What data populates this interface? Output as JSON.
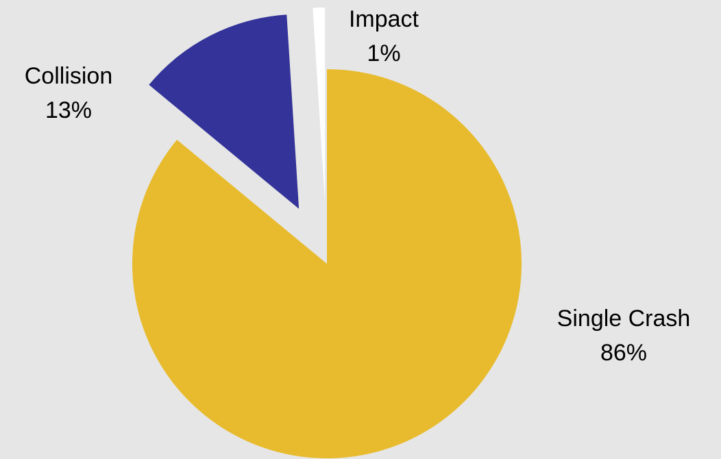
{
  "chart_data": {
    "type": "pie",
    "categories": [
      "Single Crash",
      "Collision",
      "Impact"
    ],
    "values": [
      86,
      13,
      1
    ],
    "value_labels": [
      "86%",
      "13%",
      "1%"
    ],
    "colors": [
      "#e8bb2e",
      "#333399",
      "#ffffff"
    ]
  }
}
